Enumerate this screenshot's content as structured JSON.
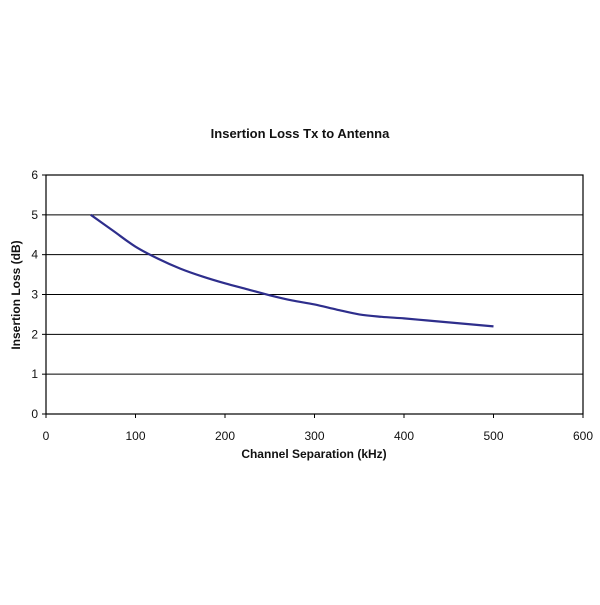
{
  "chart_data": {
    "type": "line",
    "title": "Insertion Loss Tx to Antenna",
    "xlabel": "Channel Separation (kHz)",
    "ylabel": "Insertion Loss (dB)",
    "xlim": [
      0,
      600
    ],
    "ylim": [
      0,
      6
    ],
    "xticks": [
      "0",
      "100",
      "200",
      "300",
      "400",
      "500",
      "600"
    ],
    "yticks": [
      "0",
      "1",
      "2",
      "3",
      "4",
      "5",
      "6"
    ],
    "grid": "horizontal",
    "legend": "none",
    "series": [
      {
        "color": "#2e2e8c",
        "x": [
          50,
          75,
          100,
          125,
          150,
          175,
          200,
          225,
          250,
          275,
          300,
          325,
          350,
          375,
          400,
          425,
          450,
          475,
          500
        ],
        "y": [
          5.0,
          4.6,
          4.2,
          3.9,
          3.65,
          3.45,
          3.28,
          3.13,
          2.98,
          2.85,
          2.75,
          2.62,
          2.5,
          2.44,
          2.4,
          2.35,
          2.3,
          2.25,
          2.2
        ]
      }
    ]
  }
}
